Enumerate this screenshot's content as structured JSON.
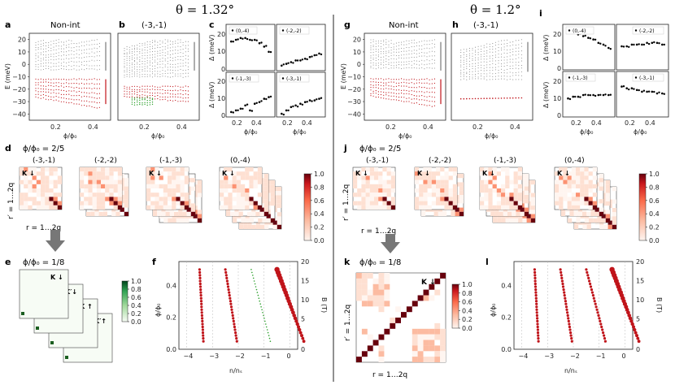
{
  "figure": {
    "left": {
      "theta": "θ = 1.32°",
      "panels": {
        "a": {
          "label": "a",
          "title": "Non-int",
          "ylabel": "E (meV)",
          "xlabel": "ϕ/ϕ₀",
          "yticks": [
            "20",
            "10",
            "0",
            "−10",
            "−20",
            "−30",
            "−40"
          ],
          "xticks": [
            "0.2",
            "0.4"
          ]
        },
        "b": {
          "label": "b",
          "title": "(-3,-1)",
          "xlabel": "ϕ/ϕ₀",
          "xticks": [
            "0.2",
            "0.4"
          ]
        },
        "c": {
          "label": "c",
          "ylabel_top": "Δ (meV)",
          "ylabel_bottom": "Δ (meV)",
          "xlabel": "ϕ/ϕ₀",
          "yticks_top": [
            "20",
            "10",
            "0"
          ],
          "yticks_bottom": [
            "20",
            "10",
            "0"
          ],
          "xticks": [
            "0.2",
            "0.4"
          ],
          "legends": [
            "(0,-4)",
            "(-2,-2)",
            "(-1,-3)",
            "(-3,-1)"
          ]
        },
        "d": {
          "label": "d",
          "subtitle": "ϕ/ϕ₀ = 2/5",
          "groups": [
            "(-3,-1)",
            "(-2,-2)",
            "(-1,-3)",
            "(0,-4)"
          ],
          "ylabel": "r′ = 1…2q",
          "xlabel": "r = 1…2q",
          "matrix_labels": [
            "K ↓",
            "K′↓",
            "K ↑",
            "K′↑"
          ],
          "colorbar_ticks": [
            "1.0",
            "0.8",
            "0.6",
            "0.4",
            "0.2",
            "0.0"
          ]
        },
        "e": {
          "label": "e",
          "subtitle": "ϕ/ϕ₀ = 1/8",
          "matrix_labels": [
            "K ↓",
            "K′↓",
            "K ↑",
            "K′↑"
          ],
          "colorbar_ticks": [
            "1.0",
            "0.8",
            "0.6",
            "0.4",
            "0.2",
            "0.0"
          ]
        },
        "f": {
          "label": "f",
          "ylabel": "ϕ/ϕ₀",
          "ylabel_right": "B (T)",
          "xlabel": "n/nₛ",
          "xticks": [
            "−4",
            "−3",
            "−2",
            "−1",
            "0"
          ],
          "yticks": [
            "0.4",
            "0.2",
            "0.0"
          ],
          "yticks_right": [
            "20",
            "15",
            "10",
            "5",
            "0"
          ]
        }
      }
    },
    "right": {
      "theta": "θ = 1.2°",
      "panels": {
        "g": {
          "label": "g",
          "title": "Non-int",
          "ylabel": "E (meV)",
          "xlabel": "ϕ/ϕ₀",
          "yticks": [
            "20",
            "10",
            "0",
            "−10",
            "−20",
            "−30",
            "−40"
          ],
          "xticks": [
            "0.2",
            "0.4"
          ]
        },
        "h": {
          "label": "h",
          "title": "(-3,-1)",
          "xlabel": "ϕ/ϕ₀",
          "xticks": [
            "0.2",
            "0.4"
          ]
        },
        "i": {
          "label": "i",
          "ylabel_top": "Δ (meV)",
          "ylabel_bottom": "Δ (meV)",
          "xlabel": "ϕ/ϕ₀",
          "yticks_top": [
            "20",
            "10",
            "0"
          ],
          "yticks_bottom": [
            "20",
            "10",
            "0"
          ],
          "xticks": [
            "0.2",
            "0.4"
          ],
          "legends": [
            "(0,-4)",
            "(-2,-2)",
            "(-1,-3)",
            "(-3,-1)"
          ]
        },
        "j": {
          "label": "j",
          "subtitle": "ϕ/ϕ₀ = 2/5",
          "groups": [
            "(-3,-1)",
            "(-2,-2)",
            "(-1,-3)",
            "(0,-4)"
          ],
          "ylabel": "r′ = 1…2q",
          "xlabel": "r = 1…2q",
          "matrix_labels": [
            "K ↓",
            "K′↓",
            "K ↑",
            "K′↑"
          ],
          "colorbar_ticks": [
            "1.0",
            "0.8",
            "0.6",
            "0.4",
            "0.2",
            "0.0"
          ]
        },
        "k": {
          "label": "k",
          "subtitle": "ϕ/ϕ₀ = 1/8",
          "ylabel": "r′ = 1…2q",
          "xlabel": "r = 1…2q",
          "matrix_label": "K ↓",
          "colorbar_ticks": [
            "1.0",
            "0.8",
            "0.6",
            "0.4",
            "0.2",
            "0.0"
          ]
        },
        "l": {
          "label": "l",
          "ylabel": "ϕ/ϕ₀",
          "ylabel_right": "B (T)",
          "xlabel": "n/nₛ",
          "xticks": [
            "−4",
            "−3",
            "−2",
            "−1",
            "0"
          ],
          "yticks": [
            "0.4",
            "0.2",
            "0.0"
          ],
          "yticks_right": [
            "20",
            "15",
            "10",
            "5",
            "0"
          ]
        }
      }
    }
  },
  "colors": {
    "red": "#c0141a",
    "green": "#2ca02c",
    "grey": "#8a8a8a",
    "dark_green": "#1b5e20"
  },
  "chart_data": [
    {
      "type": "scatter",
      "panel": "c-(0,-4)",
      "x": [
        0.1,
        0.15,
        0.2,
        0.25,
        0.3,
        0.35,
        0.4,
        0.45,
        0.5
      ],
      "y": [
        16,
        17,
        18,
        18,
        17,
        17,
        15,
        13,
        10
      ]
    },
    {
      "type": "scatter",
      "panel": "c-(-2,-2)",
      "x": [
        0.1,
        0.15,
        0.2,
        0.25,
        0.3,
        0.35,
        0.4,
        0.45,
        0.5
      ],
      "y": [
        2,
        3,
        4,
        5,
        5,
        6,
        7,
        8,
        9
      ]
    },
    {
      "type": "scatter",
      "panel": "c-(-1,-3)",
      "x": [
        0.1,
        0.15,
        0.2,
        0.25,
        0.3,
        0.35,
        0.4,
        0.45,
        0.5
      ],
      "y": [
        2,
        3,
        4,
        6,
        3,
        7,
        8,
        10,
        11
      ]
    },
    {
      "type": "scatter",
      "panel": "c-(-3,-1)",
      "x": [
        0.1,
        0.15,
        0.2,
        0.25,
        0.3,
        0.35,
        0.4,
        0.45,
        0.5
      ],
      "y": [
        1,
        3,
        5,
        6,
        7,
        8,
        9,
        9,
        10
      ]
    },
    {
      "type": "scatter",
      "panel": "i-(0,-4)",
      "x": [
        0.1,
        0.15,
        0.2,
        0.25,
        0.3,
        0.35,
        0.4,
        0.45,
        0.5
      ],
      "y": [
        22,
        21,
        20,
        19,
        18,
        17,
        15,
        14,
        12
      ]
    },
    {
      "type": "scatter",
      "panel": "i-(-2,-2)",
      "x": [
        0.1,
        0.15,
        0.2,
        0.25,
        0.3,
        0.35,
        0.4,
        0.45,
        0.5
      ],
      "y": [
        13,
        13,
        14,
        14,
        14,
        15,
        15,
        15,
        14
      ]
    },
    {
      "type": "scatter",
      "panel": "i-(-1,-3)",
      "x": [
        0.1,
        0.15,
        0.2,
        0.25,
        0.3,
        0.35,
        0.4,
        0.45,
        0.5
      ],
      "y": [
        10,
        11,
        11,
        12,
        12,
        12,
        12,
        12,
        12
      ]
    },
    {
      "type": "scatter",
      "panel": "i-(-3,-1)",
      "x": [
        0.1,
        0.15,
        0.2,
        0.25,
        0.3,
        0.35,
        0.4,
        0.45,
        0.5
      ],
      "y": [
        17,
        16,
        16,
        15,
        14,
        14,
        14,
        13,
        13
      ]
    },
    {
      "type": "scatter",
      "panel": "f",
      "xlabel": "n/nₛ",
      "ylabel": "ϕ/ϕ₀",
      "xlim": [
        -4.3,
        0.3
      ],
      "ylim": [
        0,
        0.55
      ],
      "series": [
        {
          "name": "(-3,-1)",
          "color": "#c0141a",
          "x0": -3,
          "slope": -1
        },
        {
          "name": "(-2,-2)",
          "color": "#c0141a",
          "x0": -2,
          "slope": -2
        },
        {
          "name": "(-1,-3)",
          "color": "#2ca02c",
          "x0": -1,
          "slope": -3
        },
        {
          "name": "(0,-4)",
          "color": "#c0141a",
          "x0": 0,
          "slope": -4
        }
      ]
    },
    {
      "type": "scatter",
      "panel": "l",
      "xlabel": "n/nₛ",
      "ylabel": "ϕ/ϕ₀",
      "xlim": [
        -4.3,
        0.3
      ],
      "ylim": [
        0,
        0.55
      ],
      "series": [
        {
          "name": "(-3,-1)",
          "color": "#c0141a",
          "x0": -3,
          "slope": -1
        },
        {
          "name": "(-2,-2)",
          "color": "#c0141a",
          "x0": -2,
          "slope": -2
        },
        {
          "name": "(-1,-3)",
          "color": "#c0141a",
          "x0": -1,
          "slope": -3
        },
        {
          "name": "(0,-4)",
          "color": "#c0141a",
          "x0": 0,
          "slope": -4
        }
      ]
    }
  ]
}
